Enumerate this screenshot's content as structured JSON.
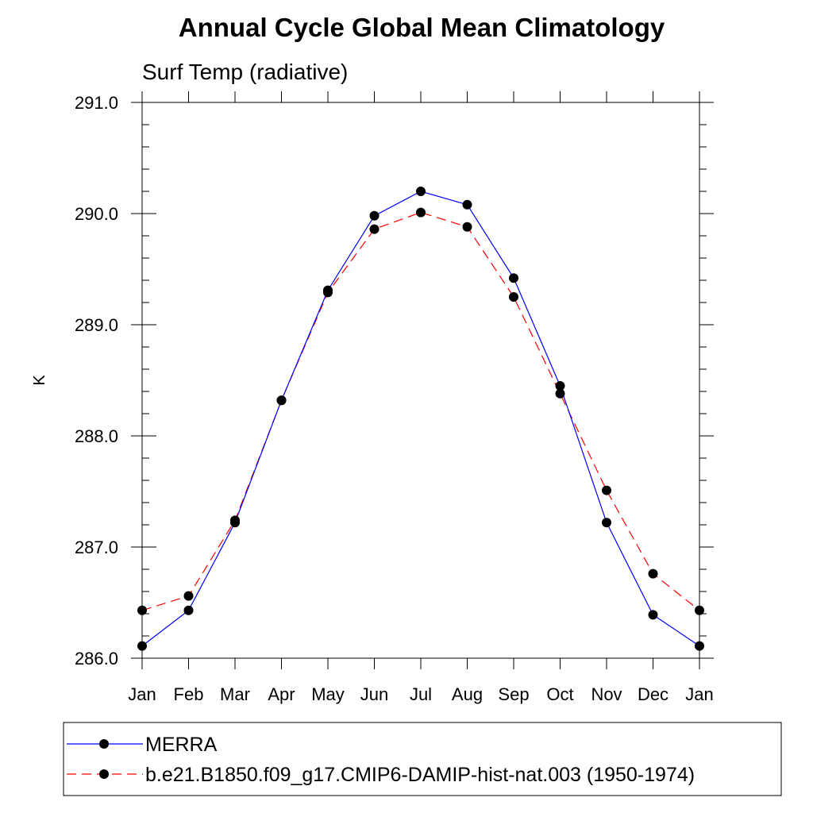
{
  "chart_data": {
    "type": "line",
    "title": "Annual Cycle Global Mean Climatology",
    "subtitle": "Surf Temp (radiative)",
    "xlabel": "",
    "ylabel": "K",
    "categories": [
      "Jan",
      "Feb",
      "Mar",
      "Apr",
      "May",
      "Jun",
      "Jul",
      "Aug",
      "Sep",
      "Oct",
      "Nov",
      "Dec",
      "Jan"
    ],
    "ylim": [
      286.0,
      291.0
    ],
    "y_ticks": [
      286.0,
      287.0,
      288.0,
      289.0,
      290.0,
      291.0
    ],
    "y_tick_labels": [
      "286.0",
      "287.0",
      "288.0",
      "289.0",
      "290.0",
      "291.0"
    ],
    "y_minor_step": 0.2,
    "grid": false,
    "legend_position": "bottom",
    "series": [
      {
        "name": "MERRA",
        "color": "#0000ff",
        "dash": "solid",
        "marker": "circle",
        "values": [
          286.11,
          286.43,
          287.22,
          288.32,
          289.31,
          289.98,
          290.2,
          290.08,
          289.42,
          288.45,
          287.22,
          286.39,
          286.11
        ]
      },
      {
        "name": "b.e21.B1850.f09_g17.CMIP6-DAMIP-hist-nat.003 (1950-1974)",
        "color": "#ff0000",
        "dash": "dashed",
        "marker": "circle",
        "values": [
          286.43,
          286.56,
          287.24,
          288.32,
          289.29,
          289.86,
          290.01,
          289.88,
          289.25,
          288.38,
          287.51,
          286.76,
          286.43
        ]
      }
    ]
  }
}
